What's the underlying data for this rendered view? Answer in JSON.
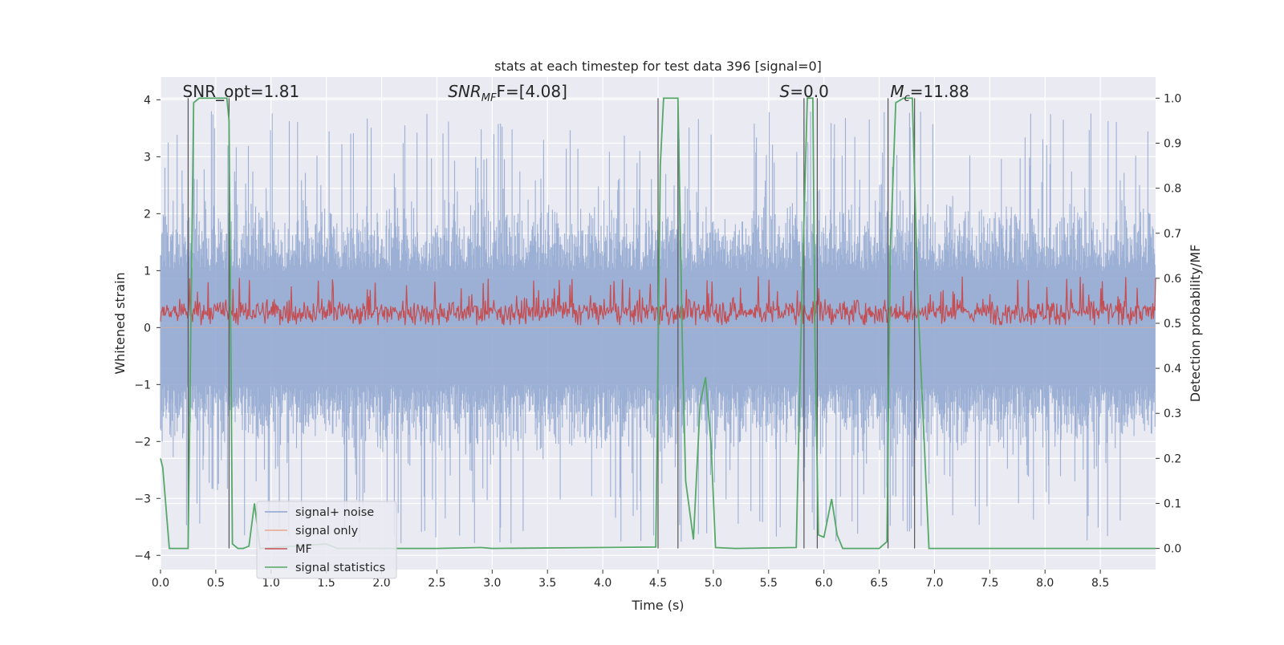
{
  "chart_data": {
    "type": "line",
    "title": "stats at each timestep for test data 396 [signal=0]",
    "xlabel": "Time (s)",
    "ylabel": "Whitened strain",
    "y2label": "Detection probability/MF",
    "xlim": [
      0.0,
      9.0
    ],
    "ylim": [
      -4.25,
      4.4
    ],
    "y2lim": [
      -0.047,
      1.047
    ],
    "xticks": [
      "0.0",
      "0.5",
      "1.0",
      "1.5",
      "2.0",
      "2.5",
      "3.0",
      "3.5",
      "4.0",
      "4.5",
      "5.0",
      "5.5",
      "6.0",
      "6.5",
      "7.0",
      "7.5",
      "8.0",
      "8.5"
    ],
    "yticks": [
      "4",
      "3",
      "2",
      "1",
      "0",
      "−1",
      "−2",
      "−3",
      "−4"
    ],
    "y2ticks": [
      "1.0",
      "0.9",
      "0.8",
      "0.7",
      "0.6",
      "0.5",
      "0.4",
      "0.3",
      "0.2",
      "0.1",
      "0.0"
    ],
    "grid": true,
    "annotations": [
      {
        "label": "SNR_opt=1.81",
        "x": 0.2
      },
      {
        "label": "SNR",
        "sub": "MF",
        "suffix": "F=[4.08]",
        "x": 2.6
      },
      {
        "label": "S",
        "suffix": "=0.0",
        "x": 5.6
      },
      {
        "label": "M",
        "sub": "c",
        "suffix": "=11.88",
        "x": 6.6
      }
    ],
    "event_lines": [
      0.25,
      0.62,
      4.5,
      4.68,
      5.82,
      5.94,
      6.58,
      6.82
    ],
    "series": [
      {
        "name": "signal+ noise",
        "color": "#8ea4cf",
        "axis": "left",
        "style": "noise band, ±1.7 typical, spikes to ±3.8"
      },
      {
        "name": "signal only",
        "color": "#e9a887",
        "axis": "left",
        "values": [
          0
        ]
      },
      {
        "name": "MF",
        "color": "#c44e52",
        "axis": "right",
        "style": "noise between 0.50 and 0.60"
      },
      {
        "name": "signal statistics",
        "color": "#55a868",
        "axis": "right",
        "x": [
          0.0,
          0.02,
          0.08,
          0.25,
          0.3,
          0.35,
          0.6,
          0.62,
          0.65,
          0.7,
          0.75,
          0.8,
          0.85,
          0.9,
          1.5,
          1.6,
          2.5,
          2.9,
          3.0,
          4.48,
          4.52,
          4.55,
          4.68,
          4.72,
          4.75,
          4.82,
          4.88,
          4.93,
          4.98,
          5.02,
          5.2,
          5.75,
          5.8,
          5.85,
          5.9,
          5.92,
          5.95,
          6.0,
          6.07,
          6.12,
          6.17,
          6.25,
          6.5,
          6.57,
          6.6,
          6.65,
          6.72,
          6.8,
          6.85,
          6.95,
          7.0,
          9.0
        ],
        "y": [
          0.2,
          0.18,
          0.0,
          0.0,
          0.99,
          1.0,
          1.0,
          0.95,
          0.01,
          0.0,
          0.0,
          0.005,
          0.1,
          0.0,
          0.01,
          0.0,
          0.0,
          0.002,
          0.0,
          0.003,
          0.85,
          1.0,
          1.0,
          0.45,
          0.15,
          0.02,
          0.32,
          0.38,
          0.23,
          0.002,
          0.0,
          0.002,
          0.55,
          1.0,
          1.0,
          0.45,
          0.03,
          0.025,
          0.11,
          0.03,
          0.0,
          0.0,
          0.0,
          0.015,
          0.65,
          0.99,
          1.0,
          1.0,
          0.55,
          0.0,
          0.0,
          0.0
        ]
      }
    ],
    "legend": {
      "placement": "lower-left",
      "entries": [
        "signal+ noise",
        "signal only",
        "MF",
        "signal statistics"
      ]
    }
  }
}
